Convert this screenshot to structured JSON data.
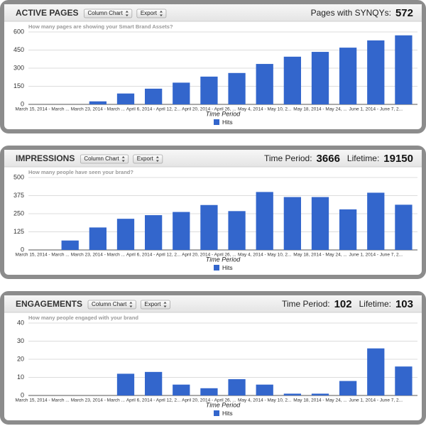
{
  "chart_data": [
    {
      "type": "bar",
      "title": "ACTIVE PAGES",
      "controls": [
        "Column Chart",
        "Export"
      ],
      "stats": [
        {
          "label": "Pages with SYNQYs:",
          "value": 572
        }
      ],
      "subtitle": "How many pages are showing your Smart Brand Assets?",
      "x_label": "Time Period",
      "categories": [
        "March 15, 2014 - March ...",
        null,
        "March 23, 2014 - March ...",
        null,
        "April 6, 2014 - April 12, 2...",
        null,
        "April 20, 2014 - April 26, ...",
        null,
        "May 4, 2014 - May 10, 2...",
        null,
        "May 18, 2014 - May 24, ...",
        null,
        "June 1, 2014 - June 7, 2...",
        null
      ],
      "series": [
        {
          "name": "Hits",
          "color": "#3366cc",
          "values": [
            0,
            0,
            25,
            90,
            130,
            180,
            230,
            260,
            335,
            395,
            435,
            470,
            530,
            572
          ]
        }
      ],
      "ylim": [
        0,
        600
      ],
      "yticks": [
        0,
        150,
        300,
        450,
        600
      ],
      "grid": true
    },
    {
      "type": "bar",
      "title": "IMPRESSIONS",
      "controls": [
        "Column Chart",
        "Export"
      ],
      "stats": [
        {
          "label": "Time Period:",
          "value": 3666
        },
        {
          "label": "Lifetime:",
          "value": 19150
        }
      ],
      "subtitle": "How many people have seen your brand?",
      "x_label": "Time Period",
      "categories": [
        "March 15, 2014 - March ...",
        null,
        "March 23, 2014 - March ...",
        null,
        "April 6, 2014 - April 12, 2...",
        null,
        "April 20, 2014 - April 26, ...",
        null,
        "May 4, 2014 - May 10, 2...",
        null,
        "May 18, 2014 - May 24, ...",
        null,
        "June 1, 2014 - June 7, 2...",
        null
      ],
      "series": [
        {
          "name": "Hits",
          "color": "#3366cc",
          "values": [
            0,
            65,
            155,
            215,
            240,
            262,
            310,
            268,
            400,
            365,
            365,
            280,
            395,
            312
          ]
        }
      ],
      "ylim": [
        0,
        500
      ],
      "yticks": [
        0,
        125,
        250,
        375,
        500
      ],
      "grid": true
    },
    {
      "type": "bar",
      "title": "ENGAGEMENTS",
      "controls": [
        "Column Chart",
        "Export"
      ],
      "stats": [
        {
          "label": "Time Period:",
          "value": 102
        },
        {
          "label": "Lifetime:",
          "value": 103
        }
      ],
      "subtitle": "How many people engaged with your brand",
      "x_label": "Time Period",
      "categories": [
        "March 15, 2014 - March ...",
        null,
        "March 23, 2014 - March ...",
        null,
        "April 6, 2014 - April 12, 2...",
        null,
        "April 20, 2014 - April 26, ...",
        null,
        "May 4, 2014 - May 10, 2...",
        null,
        "May 18, 2014 - May 24, ...",
        null,
        "June 1, 2014 - June 7, 2...",
        null
      ],
      "series": [
        {
          "name": "Hits",
          "color": "#3366cc",
          "values": [
            0,
            0,
            0,
            12,
            13,
            6,
            4,
            9,
            6,
            1,
            1,
            8,
            26,
            16
          ]
        }
      ],
      "ylim": [
        0,
        40
      ],
      "yticks": [
        0,
        10,
        20,
        30,
        40
      ],
      "grid": true
    }
  ]
}
